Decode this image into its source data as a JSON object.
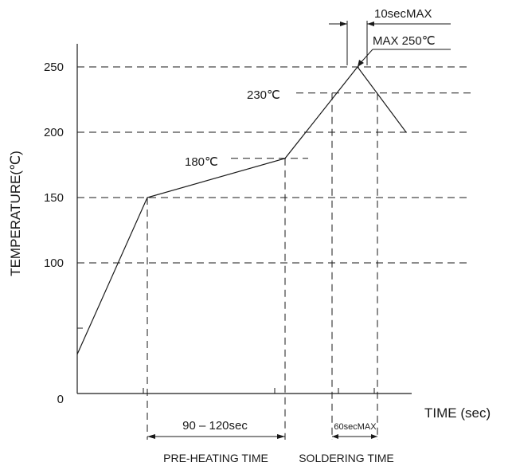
{
  "chart_data": {
    "type": "line",
    "title": "",
    "xlabel": "TIME (sec)",
    "ylabel": "TEMPERATURE(℃)",
    "ylim": [
      0,
      260
    ],
    "yticks": [
      0,
      100,
      150,
      200,
      250
    ],
    "x_numeric_labels": false,
    "grid": "dashed guide lines at 100, 150, 200, 250",
    "series": [
      {
        "points": [
          {
            "x": 0,
            "y": 30
          },
          {
            "x": 1,
            "y": 150
          },
          {
            "x": 2,
            "y": 180
          },
          {
            "x": 3,
            "y": 250
          },
          {
            "x": 4,
            "y": 200
          }
        ]
      }
    ],
    "annotations": {
      "preheat_start_temp": "180℃",
      "solder_temp": "230℃",
      "peak": "MAX 250℃",
      "peak_duration": "10secMAX",
      "preheat_duration": "90 – 120sec",
      "solder_duration": "60secMAX",
      "preheat_label": "PRE-HEATING TIME",
      "solder_label": "SOLDERING TIME"
    }
  }
}
